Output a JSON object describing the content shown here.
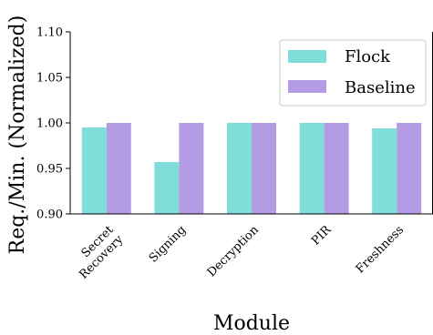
{
  "chart_data": {
    "type": "bar",
    "categories": [
      "Secret\nRecovery",
      "Signing",
      "Decryption",
      "PIR",
      "Freshness"
    ],
    "series": [
      {
        "name": "Flock",
        "values": [
          0.995,
          0.957,
          1.0,
          1.0,
          0.994
        ],
        "color": "#7fded9"
      },
      {
        "name": "Baseline",
        "values": [
          1.0,
          1.0,
          1.0,
          1.0,
          1.0
        ],
        "color": "#b39ce3"
      }
    ],
    "title": "",
    "xlabel": "Module",
    "ylabel": "Req./Min. (Normalized)",
    "ylim": [
      0.9,
      1.1
    ],
    "yticks": [
      0.9,
      0.95,
      1.0,
      1.05,
      1.1
    ],
    "ytick_labels": [
      "0.90",
      "0.95",
      "1.00",
      "1.05",
      "1.10"
    ],
    "grid": false,
    "legend_position": "upper-right"
  }
}
